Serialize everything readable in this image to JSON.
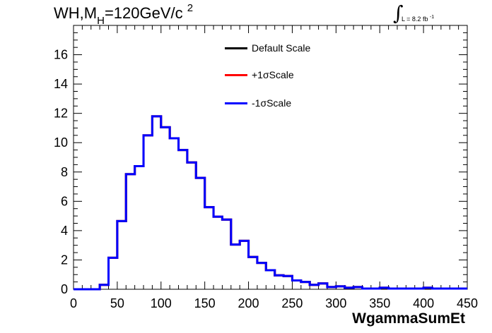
{
  "title": {
    "main": "WH,M",
    "sub": "H",
    "rest": "=120GeV/c",
    "sup": "2"
  },
  "lumi": {
    "symbol": "∫",
    "text": "L = 8.2 fb",
    "exp": "-1"
  },
  "chart_data": {
    "type": "line",
    "xlabel": "WgammaSumEt",
    "ylabel": "",
    "xlim": [
      0,
      450
    ],
    "ylim": [
      0,
      18
    ],
    "xticks": [
      0,
      50,
      100,
      150,
      200,
      250,
      300,
      350,
      400,
      450
    ],
    "yticks": [
      0,
      2,
      4,
      6,
      8,
      10,
      12,
      14,
      16
    ],
    "bin_edges": [
      0,
      10,
      20,
      30,
      40,
      50,
      60,
      70,
      80,
      90,
      100,
      110,
      120,
      130,
      140,
      150,
      160,
      170,
      180,
      190,
      200,
      210,
      220,
      230,
      240,
      250,
      260,
      270,
      280,
      290,
      300,
      310,
      320,
      330,
      340,
      350,
      360,
      370,
      380,
      390,
      400,
      410,
      420,
      430,
      440,
      450
    ],
    "series": [
      {
        "name": "Default Scale",
        "color": "#000000",
        "values": [
          0,
          0,
          0,
          0.3,
          2.15,
          4.65,
          7.85,
          8.4,
          10.5,
          11.8,
          11.05,
          10.3,
          9.5,
          8.65,
          7.6,
          5.6,
          4.95,
          4.75,
          3.05,
          3.3,
          2.2,
          1.8,
          1.3,
          0.95,
          0.9,
          0.6,
          0.5,
          0.3,
          0.4,
          0.15,
          0.2,
          0.1,
          0.15,
          0.05,
          0.05,
          0.1,
          0.05,
          0.05,
          0.05,
          0.05,
          0.1,
          0.05,
          0.05,
          0.05,
          0.05
        ]
      },
      {
        "name": "+1σScale",
        "color": "#ff0000",
        "values": [
          0,
          0,
          0,
          0.3,
          2.15,
          4.65,
          7.85,
          8.4,
          10.5,
          11.8,
          11.05,
          10.3,
          9.5,
          8.65,
          7.6,
          5.6,
          4.95,
          4.75,
          3.05,
          3.3,
          2.2,
          1.8,
          1.3,
          0.95,
          0.9,
          0.6,
          0.5,
          0.3,
          0.4,
          0.15,
          0.2,
          0.1,
          0.15,
          0.05,
          0.05,
          0.1,
          0.05,
          0.05,
          0.05,
          0.05,
          0.1,
          0.05,
          0.05,
          0.05,
          0.05
        ]
      },
      {
        "name": "-1σScale",
        "color": "#0000ff",
        "values": [
          0,
          0,
          0,
          0.3,
          2.15,
          4.65,
          7.85,
          8.4,
          10.5,
          11.8,
          11.05,
          10.3,
          9.5,
          8.65,
          7.6,
          5.6,
          4.95,
          4.75,
          3.05,
          3.3,
          2.2,
          1.8,
          1.3,
          0.95,
          0.9,
          0.6,
          0.5,
          0.3,
          0.4,
          0.15,
          0.2,
          0.1,
          0.15,
          0.05,
          0.05,
          0.1,
          0.05,
          0.05,
          0.05,
          0.05,
          0.1,
          0.05,
          0.05,
          0.05,
          0.05
        ]
      }
    ],
    "legend_position": "top-center",
    "grid": false
  }
}
